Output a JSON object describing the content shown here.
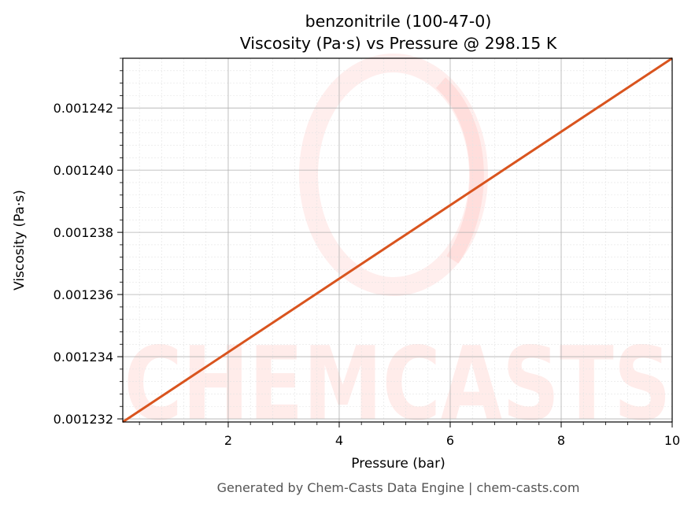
{
  "chart_data": {
    "type": "line",
    "title": "benzonitrile (100-47-0)",
    "subtitle": "Viscosity (Pa·s) vs Pressure @ 298.15 K",
    "xlabel": "Pressure (bar)",
    "ylabel": "Viscosity (Pa·s)",
    "xlim": [
      0.1,
      10
    ],
    "ylim": [
      0.0012319,
      0.0012436
    ],
    "x_ticks": [
      2,
      4,
      6,
      8,
      10
    ],
    "x_tick_labels": [
      "2",
      "4",
      "6",
      "8",
      "10"
    ],
    "y_ticks": [
      0.001232,
      0.001234,
      0.001236,
      0.001238,
      0.00124,
      0.001242
    ],
    "y_tick_labels": [
      "0.001232",
      "0.001234",
      "0.001236",
      "0.001238",
      "0.001240",
      "0.001242"
    ],
    "grid": true,
    "series": [
      {
        "color": "#d9541e",
        "x": [
          0.1,
          10
        ],
        "y": [
          0.0012319,
          0.0012436
        ]
      }
    ]
  },
  "watermark": {
    "text": "CHEMCASTS"
  },
  "footer": "Generated by Chem-Casts Data Engine | chem-casts.com"
}
